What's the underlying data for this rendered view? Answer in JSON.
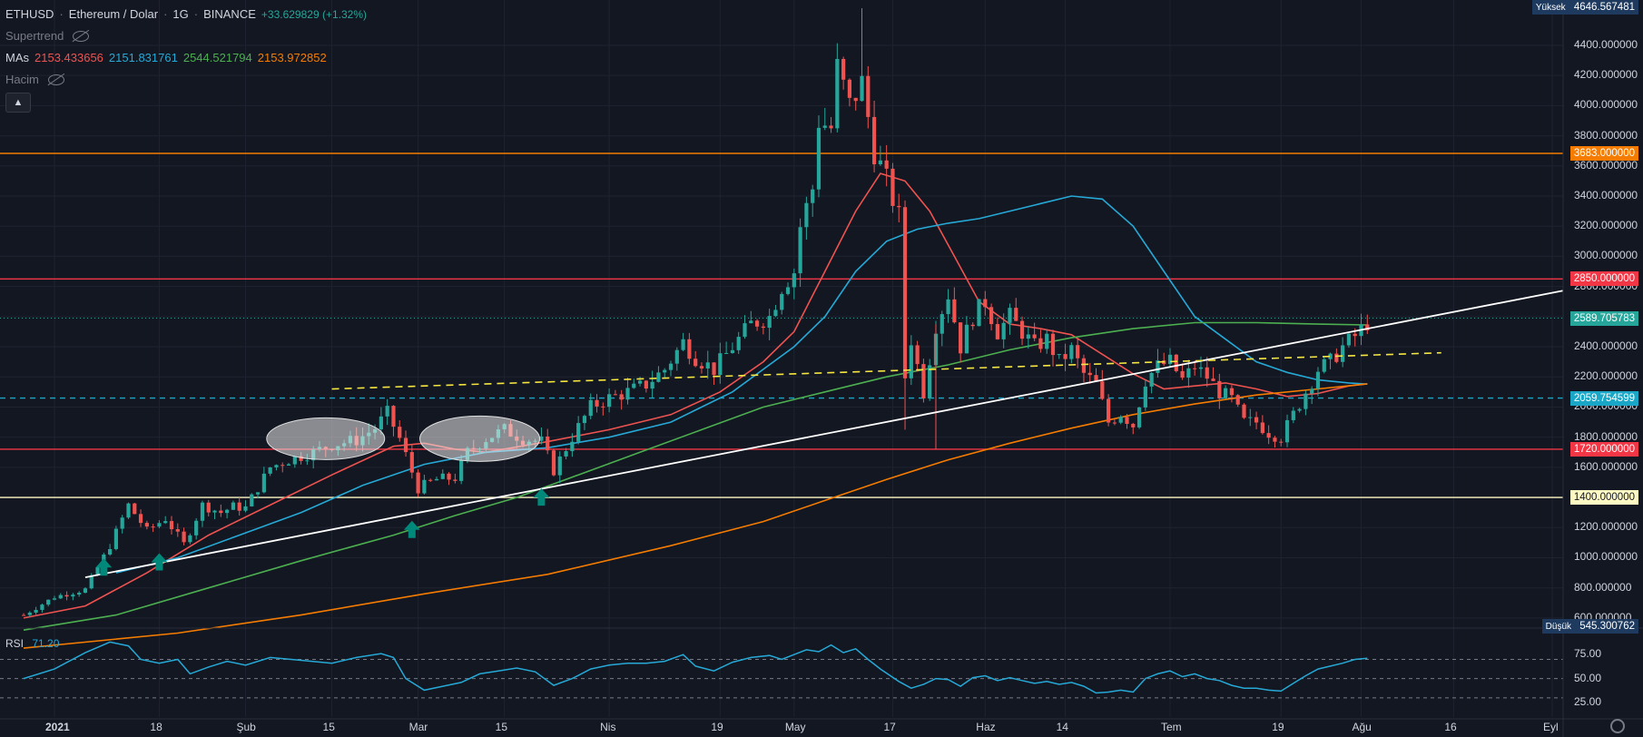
{
  "header": {
    "symbol": "ETHUSD",
    "name": "Ethereum / Dolar",
    "interval": "1G",
    "exchange": "BINANCE",
    "change": "+33.629829 (+1.32%)"
  },
  "indicators": {
    "supertrend_label": "Supertrend",
    "mas_label": "MAs",
    "ma_values": [
      "2153.433656",
      "2151.831761",
      "2544.521794",
      "2153.972852"
    ],
    "ma_colors": [
      "#ef5350",
      "#26a9d6",
      "#4caf50",
      "#f57c00"
    ],
    "volume_label": "Hacim",
    "collapse_icon": "chevron-up-icon"
  },
  "price_axis": {
    "high_label": "Yüksek",
    "high_value": "4646.567481",
    "low_label": "Düşük",
    "low_value": "545.300762",
    "ticks": [
      "4400.000000",
      "4200.000000",
      "4000.000000",
      "3800.000000",
      "3600.000000",
      "3400.000000",
      "3200.000000",
      "3000.000000",
      "2800.000000",
      "2600.000000",
      "2400.000000",
      "2200.000000",
      "2000.000000",
      "1800.000000",
      "1600.000000",
      "1400.000000",
      "1200.000000",
      "1000.000000",
      "800.000000",
      "600.000000"
    ],
    "tags": [
      {
        "value": "3683.000000",
        "price": 3683,
        "color": "#f57c00"
      },
      {
        "value": "2850.000000",
        "price": 2850,
        "color": "#f23645"
      },
      {
        "value": "2589.705783",
        "price": 2589.7,
        "color": "#26a69a"
      },
      {
        "value": "2059.754599",
        "price": 2059.75,
        "color": "#1aa7c7"
      },
      {
        "value": "1720.000000",
        "price": 1720,
        "color": "#f23645"
      },
      {
        "value": "1400.000000",
        "price": 1400,
        "color": "#fff9c4"
      }
    ]
  },
  "time_axis": {
    "labels": [
      {
        "text": "2021",
        "day": 0
      },
      {
        "text": "18",
        "day": 17
      },
      {
        "text": "Şub",
        "day": 31
      },
      {
        "text": "15",
        "day": 45
      },
      {
        "text": "Mar",
        "day": 59
      },
      {
        "text": "15",
        "day": 73
      },
      {
        "text": "Nis",
        "day": 90
      },
      {
        "text": "19",
        "day": 108
      },
      {
        "text": "May",
        "day": 120
      },
      {
        "text": "17",
        "day": 136
      },
      {
        "text": "Haz",
        "day": 151
      },
      {
        "text": "14",
        "day": 164
      },
      {
        "text": "Tem",
        "day": 181
      },
      {
        "text": "19",
        "day": 199
      },
      {
        "text": "Ağu",
        "day": 212
      },
      {
        "text": "16",
        "day": 227
      },
      {
        "text": "Eyl",
        "day": 243
      }
    ]
  },
  "rsi": {
    "label": "RSI",
    "value": "71.20",
    "ticks": [
      "75.00",
      "50.00",
      "25.00"
    ]
  },
  "chart_data": {
    "type": "line",
    "title": "ETHUSD · Ethereum / Dolar · 1G · BINANCE",
    "x_unit": "days since 2021-01-01",
    "ylim": [
      545.3,
      4646.57
    ],
    "price_anchors": [
      [
        -5,
        620
      ],
      [
        0,
        740
      ],
      [
        5,
        790
      ],
      [
        9,
        1080
      ],
      [
        12,
        1350
      ],
      [
        15,
        1180
      ],
      [
        18,
        1260
      ],
      [
        21,
        1090
      ],
      [
        24,
        1350
      ],
      [
        27,
        1300
      ],
      [
        29,
        1340
      ],
      [
        31,
        1330
      ],
      [
        35,
        1600
      ],
      [
        38,
        1650
      ],
      [
        42,
        1700
      ],
      [
        45,
        1750
      ],
      [
        49,
        1780
      ],
      [
        52,
        1860
      ],
      [
        54,
        1960
      ],
      [
        56,
        1790
      ],
      [
        59,
        1460
      ],
      [
        62,
        1520
      ],
      [
        65,
        1530
      ],
      [
        67,
        1700
      ],
      [
        70,
        1790
      ],
      [
        73,
        1850
      ],
      [
        76,
        1790
      ],
      [
        79,
        1770
      ],
      [
        81,
        1580
      ],
      [
        84,
        1800
      ],
      [
        87,
        2000
      ],
      [
        90,
        2060
      ],
      [
        93,
        2100
      ],
      [
        96,
        2150
      ],
      [
        99,
        2250
      ],
      [
        102,
        2430
      ],
      [
        104,
        2330
      ],
      [
        107,
        2250
      ],
      [
        110,
        2400
      ],
      [
        113,
        2550
      ],
      [
        116,
        2600
      ],
      [
        118,
        2800
      ],
      [
        120,
        2900
      ],
      [
        121,
        3200
      ],
      [
        123,
        3450
      ],
      [
        124,
        3900
      ],
      [
        126,
        3850
      ],
      [
        127,
        4250
      ],
      [
        129,
        4000
      ],
      [
        131,
        4150
      ],
      [
        133,
        3700
      ],
      [
        135,
        3500
      ],
      [
        137,
        3260
      ],
      [
        138,
        2200
      ],
      [
        139,
        2450
      ],
      [
        141,
        2100
      ],
      [
        143,
        2550
      ],
      [
        145,
        2750
      ],
      [
        147,
        2400
      ],
      [
        149,
        2600
      ],
      [
        151,
        2700
      ],
      [
        153,
        2500
      ],
      [
        155,
        2600
      ],
      [
        157,
        2500
      ],
      [
        159,
        2400
      ],
      [
        161,
        2450
      ],
      [
        163,
        2300
      ],
      [
        165,
        2380
      ],
      [
        167,
        2220
      ],
      [
        169,
        2150
      ],
      [
        171,
        1900
      ],
      [
        173,
        1960
      ],
      [
        175,
        1880
      ],
      [
        177,
        2180
      ],
      [
        179,
        2270
      ],
      [
        181,
        2300
      ],
      [
        183,
        2180
      ],
      [
        185,
        2270
      ],
      [
        187,
        2200
      ],
      [
        189,
        2100
      ],
      [
        191,
        2050
      ],
      [
        193,
        1900
      ],
      [
        195,
        1900
      ],
      [
        197,
        1830
      ],
      [
        199,
        1800
      ],
      [
        201,
        1950
      ],
      [
        203,
        2100
      ],
      [
        205,
        2250
      ],
      [
        207,
        2300
      ],
      [
        209,
        2400
      ],
      [
        211,
        2470
      ],
      [
        213,
        2560
      ]
    ],
    "ma_series": [
      {
        "color": "#ef5350",
        "anchors": [
          [
            -5,
            600
          ],
          [
            5,
            680
          ],
          [
            15,
            900
          ],
          [
            25,
            1150
          ],
          [
            35,
            1350
          ],
          [
            45,
            1550
          ],
          [
            55,
            1740
          ],
          [
            60,
            1760
          ],
          [
            65,
            1720
          ],
          [
            70,
            1700
          ],
          [
            80,
            1770
          ],
          [
            90,
            1850
          ],
          [
            100,
            1950
          ],
          [
            108,
            2100
          ],
          [
            115,
            2300
          ],
          [
            120,
            2500
          ],
          [
            125,
            2900
          ],
          [
            130,
            3300
          ],
          [
            134,
            3550
          ],
          [
            138,
            3500
          ],
          [
            142,
            3300
          ],
          [
            146,
            3000
          ],
          [
            150,
            2700
          ],
          [
            155,
            2550
          ],
          [
            160,
            2520
          ],
          [
            165,
            2480
          ],
          [
            170,
            2350
          ],
          [
            175,
            2220
          ],
          [
            180,
            2120
          ],
          [
            185,
            2140
          ],
          [
            190,
            2160
          ],
          [
            195,
            2120
          ],
          [
            200,
            2070
          ],
          [
            205,
            2090
          ],
          [
            210,
            2140
          ],
          [
            213,
            2153
          ]
        ]
      },
      {
        "color": "#26a9d6",
        "anchors": [
          [
            10,
            900
          ],
          [
            20,
            1000
          ],
          [
            30,
            1150
          ],
          [
            40,
            1300
          ],
          [
            50,
            1480
          ],
          [
            60,
            1620
          ],
          [
            70,
            1700
          ],
          [
            80,
            1730
          ],
          [
            90,
            1800
          ],
          [
            100,
            1900
          ],
          [
            110,
            2100
          ],
          [
            120,
            2400
          ],
          [
            125,
            2600
          ],
          [
            130,
            2900
          ],
          [
            135,
            3100
          ],
          [
            140,
            3180
          ],
          [
            145,
            3220
          ],
          [
            150,
            3250
          ],
          [
            155,
            3300
          ],
          [
            160,
            3350
          ],
          [
            165,
            3400
          ],
          [
            170,
            3380
          ],
          [
            175,
            3200
          ],
          [
            180,
            2900
          ],
          [
            185,
            2600
          ],
          [
            190,
            2450
          ],
          [
            195,
            2300
          ],
          [
            200,
            2230
          ],
          [
            205,
            2180
          ],
          [
            210,
            2160
          ],
          [
            213,
            2152
          ]
        ]
      },
      {
        "color": "#4caf50",
        "anchors": [
          [
            -5,
            520
          ],
          [
            10,
            620
          ],
          [
            25,
            800
          ],
          [
            40,
            980
          ],
          [
            55,
            1150
          ],
          [
            65,
            1280
          ],
          [
            75,
            1400
          ],
          [
            85,
            1550
          ],
          [
            95,
            1700
          ],
          [
            105,
            1850
          ],
          [
            115,
            2000
          ],
          [
            125,
            2100
          ],
          [
            135,
            2200
          ],
          [
            145,
            2280
          ],
          [
            155,
            2380
          ],
          [
            165,
            2460
          ],
          [
            175,
            2520
          ],
          [
            185,
            2560
          ],
          [
            195,
            2560
          ],
          [
            205,
            2550
          ],
          [
            213,
            2545
          ]
        ]
      },
      {
        "color": "#f57c00",
        "anchors": [
          [
            -5,
            400
          ],
          [
            20,
            500
          ],
          [
            40,
            620
          ],
          [
            60,
            760
          ],
          [
            80,
            890
          ],
          [
            100,
            1080
          ],
          [
            115,
            1240
          ],
          [
            125,
            1380
          ],
          [
            135,
            1520
          ],
          [
            145,
            1650
          ],
          [
            155,
            1760
          ],
          [
            165,
            1860
          ],
          [
            175,
            1950
          ],
          [
            185,
            2020
          ],
          [
            195,
            2080
          ],
          [
            205,
            2120
          ],
          [
            213,
            2154
          ]
        ]
      }
    ],
    "horizontal_levels": [
      3683,
      2850,
      2059.75,
      1720,
      1400
    ],
    "ascending_trendline": [
      [
        5,
        870
      ],
      [
        213,
        2520
      ]
    ],
    "dashed_trendline": [
      [
        45,
        2120
      ],
      [
        225,
        2360
      ]
    ],
    "rsi_anchors": [
      [
        -5,
        50
      ],
      [
        0,
        60
      ],
      [
        5,
        77
      ],
      [
        9,
        88
      ],
      [
        12,
        84
      ],
      [
        14,
        70
      ],
      [
        17,
        66
      ],
      [
        20,
        70
      ],
      [
        22,
        55
      ],
      [
        25,
        62
      ],
      [
        28,
        68
      ],
      [
        31,
        64
      ],
      [
        35,
        72
      ],
      [
        40,
        69
      ],
      [
        45,
        66
      ],
      [
        49,
        72
      ],
      [
        53,
        76
      ],
      [
        55,
        72
      ],
      [
        57,
        50
      ],
      [
        60,
        38
      ],
      [
        63,
        42
      ],
      [
        66,
        46
      ],
      [
        69,
        55
      ],
      [
        72,
        58
      ],
      [
        75,
        61
      ],
      [
        78,
        57
      ],
      [
        81,
        43
      ],
      [
        84,
        50
      ],
      [
        87,
        60
      ],
      [
        90,
        64
      ],
      [
        93,
        66
      ],
      [
        96,
        66
      ],
      [
        99,
        68
      ],
      [
        102,
        75
      ],
      [
        104,
        63
      ],
      [
        107,
        58
      ],
      [
        110,
        67
      ],
      [
        113,
        72
      ],
      [
        116,
        74
      ],
      [
        118,
        70
      ],
      [
        120,
        75
      ],
      [
        122,
        80
      ],
      [
        124,
        78
      ],
      [
        126,
        85
      ],
      [
        128,
        77
      ],
      [
        130,
        81
      ],
      [
        132,
        70
      ],
      [
        134,
        60
      ],
      [
        137,
        47
      ],
      [
        139,
        40
      ],
      [
        141,
        44
      ],
      [
        143,
        50
      ],
      [
        145,
        49
      ],
      [
        147,
        42
      ],
      [
        149,
        51
      ],
      [
        151,
        53
      ],
      [
        153,
        48
      ],
      [
        155,
        51
      ],
      [
        157,
        48
      ],
      [
        159,
        45
      ],
      [
        161,
        47
      ],
      [
        163,
        44
      ],
      [
        165,
        46
      ],
      [
        167,
        42
      ],
      [
        169,
        35
      ],
      [
        171,
        36
      ],
      [
        173,
        38
      ],
      [
        175,
        36
      ],
      [
        177,
        50
      ],
      [
        179,
        55
      ],
      [
        181,
        58
      ],
      [
        183,
        52
      ],
      [
        185,
        55
      ],
      [
        187,
        50
      ],
      [
        189,
        48
      ],
      [
        191,
        43
      ],
      [
        193,
        40
      ],
      [
        195,
        40
      ],
      [
        197,
        38
      ],
      [
        199,
        37
      ],
      [
        201,
        45
      ],
      [
        203,
        53
      ],
      [
        205,
        60
      ],
      [
        207,
        63
      ],
      [
        209,
        66
      ],
      [
        211,
        70
      ],
      [
        213,
        71.2
      ]
    ],
    "rsi_levels": [
      70,
      50,
      30
    ]
  }
}
